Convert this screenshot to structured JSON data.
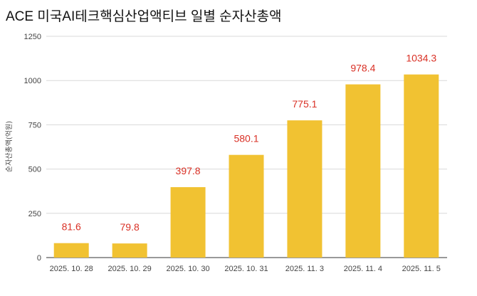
{
  "chart_data": {
    "type": "bar",
    "title": "ACE 미국AI테크핵심산업액티브 일별 순자산총액",
    "xlabel": "",
    "ylabel": "순자산총액(억원)",
    "ylim": [
      0,
      1250
    ],
    "yticks": [
      "0",
      "250",
      "500",
      "750",
      "1000",
      "1250"
    ],
    "grid": true,
    "categories": [
      "2025. 10. 28",
      "2025. 10. 29",
      "2025. 10. 30",
      "2025. 10. 31",
      "2025. 11. 3",
      "2025. 11. 4",
      "2025. 11. 5"
    ],
    "values": [
      81.6,
      79.8,
      397.8,
      580.1,
      775.1,
      978.4,
      1034.3
    ],
    "data_labels": [
      "81.6",
      "79.8",
      "397.8",
      "580.1",
      "775.1",
      "978.4",
      "1034.3"
    ],
    "colors": {
      "bar": "#F1C232",
      "data_label": "#D93025",
      "grid": "#D9D9D9",
      "axis_text": "#444444"
    }
  }
}
